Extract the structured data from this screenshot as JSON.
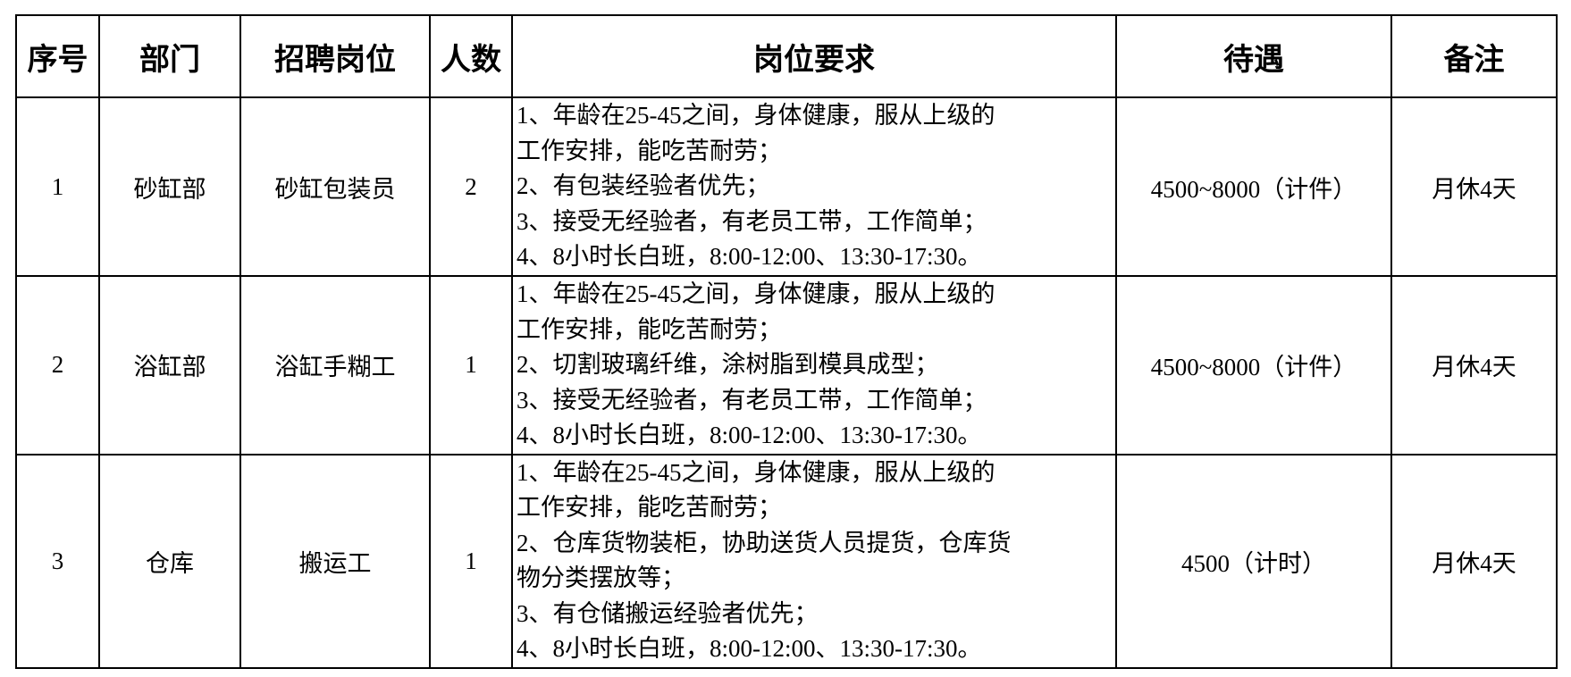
{
  "headers": [
    "序号",
    "部门",
    "招聘岗位",
    "人数",
    "岗位要求",
    "待遇",
    "备注"
  ],
  "rows": [
    {
      "no": "1",
      "dept": "砂缸部",
      "position": "砂缸包装员",
      "count": "2",
      "requirements": [
        "1、年龄在25-45之间，身体健康，服从上级的",
        "工作安排，能吃苦耐劳；",
        "2、有包装经验者优先；",
        "3、接受无经验者，有老员工带，工作简单；",
        "4、8小时长白班，8:00-12:00、13:30-17:30。"
      ],
      "pay": "4500~8000（计件）",
      "note": "月休4天"
    },
    {
      "no": "2",
      "dept": "浴缸部",
      "position": "浴缸手糊工",
      "count": "1",
      "requirements": [
        "1、年龄在25-45之间，身体健康，服从上级的",
        "工作安排，能吃苦耐劳；",
        "2、切割玻璃纤维，涂树脂到模具成型；",
        "3、接受无经验者，有老员工带，工作简单；",
        "4、8小时长白班，8:00-12:00、13:30-17:30。"
      ],
      "pay": "4500~8000（计件）",
      "note": "月休4天"
    },
    {
      "no": "3",
      "dept": "仓库",
      "position": "搬运工",
      "count": "1",
      "requirements": [
        "1、年龄在25-45之间，身体健康，服从上级的",
        "工作安排，能吃苦耐劳；",
        "2、仓库货物装柜，协助送货人员提货，仓库货",
        "物分类摆放等；",
        "3、有仓储搬运经验者优先；",
        "4、8小时长白班，8:00-12:00、13:30-17:30。"
      ],
      "pay": "4500（计时）",
      "note": "月休4天"
    }
  ]
}
